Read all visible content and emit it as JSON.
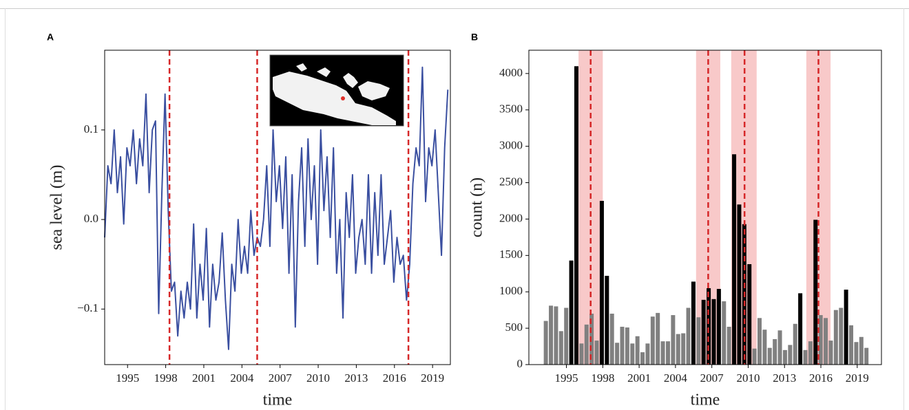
{
  "chart_data": [
    {
      "type": "line",
      "panel": "A",
      "xlabel": "time",
      "ylabel": "sea level (m)",
      "color": "#3a4fa0",
      "x": [
        1993.2,
        1993.45,
        1993.7,
        1993.95,
        1994.2,
        1994.45,
        1994.7,
        1994.95,
        1995.2,
        1995.45,
        1995.7,
        1995.95,
        1996.2,
        1996.45,
        1996.7,
        1996.95,
        1997.2,
        1997.45,
        1997.7,
        1997.95,
        1998.2,
        1998.45,
        1998.7,
        1998.95,
        1999.2,
        1999.45,
        1999.7,
        1999.95,
        2000.2,
        2000.45,
        2000.7,
        2000.95,
        2001.2,
        2001.45,
        2001.7,
        2001.95,
        2002.2,
        2002.45,
        2002.7,
        2002.95,
        2003.2,
        2003.45,
        2003.7,
        2003.95,
        2004.2,
        2004.45,
        2004.7,
        2004.95,
        2005.2,
        2005.45,
        2005.7,
        2005.95,
        2006.2,
        2006.45,
        2006.7,
        2006.95,
        2007.2,
        2007.45,
        2007.7,
        2007.95,
        2008.2,
        2008.45,
        2008.7,
        2008.95,
        2009.2,
        2009.45,
        2009.7,
        2009.95,
        2010.2,
        2010.45,
        2010.7,
        2010.95,
        2011.2,
        2011.45,
        2011.7,
        2011.95,
        2012.2,
        2012.45,
        2012.7,
        2012.95,
        2013.2,
        2013.45,
        2013.7,
        2013.95,
        2014.2,
        2014.45,
        2014.7,
        2014.95,
        2015.2,
        2015.45,
        2015.7,
        2015.95,
        2016.2,
        2016.45,
        2016.7,
        2016.95,
        2017.2,
        2017.45,
        2017.7,
        2017.95,
        2018.2,
        2018.45,
        2018.7,
        2018.95,
        2019.2,
        2019.45,
        2019.7,
        2019.95,
        2020.2
      ],
      "values": [
        -0.02,
        0.06,
        0.04,
        0.1,
        0.03,
        0.07,
        -0.005,
        0.08,
        0.06,
        0.1,
        0.04,
        0.09,
        0.06,
        0.14,
        0.03,
        0.1,
        0.11,
        -0.105,
        0.03,
        0.14,
        0.01,
        -0.08,
        -0.07,
        -0.13,
        -0.08,
        -0.11,
        -0.07,
        -0.1,
        -0.005,
        -0.11,
        -0.05,
        -0.09,
        -0.01,
        -0.12,
        -0.05,
        -0.09,
        -0.07,
        -0.015,
        -0.09,
        -0.145,
        -0.05,
        -0.08,
        0.0,
        -0.06,
        -0.03,
        -0.06,
        0.01,
        -0.04,
        -0.02,
        -0.03,
        0.0,
        0.06,
        -0.03,
        0.1,
        0.02,
        0.06,
        -0.01,
        0.07,
        -0.06,
        0.05,
        -0.12,
        0.02,
        0.08,
        -0.03,
        0.09,
        0.0,
        0.06,
        -0.05,
        0.1,
        0.01,
        0.07,
        -0.02,
        0.08,
        -0.06,
        0.0,
        -0.11,
        0.03,
        -0.02,
        0.05,
        -0.06,
        -0.02,
        0.0,
        -0.05,
        0.05,
        -0.06,
        0.03,
        -0.04,
        0.05,
        -0.05,
        -0.02,
        0.01,
        -0.07,
        -0.02,
        -0.05,
        -0.04,
        -0.09,
        -0.05,
        0.04,
        0.08,
        0.06,
        0.17,
        0.02,
        0.08,
        0.06,
        0.1,
        0.03,
        -0.04,
        0.08,
        0.145
      ],
      "xlim": [
        1993.2,
        2020.4
      ],
      "xticks": [
        1995,
        1998,
        2001,
        2004,
        2007,
        2010,
        2013,
        2016,
        2019
      ],
      "ylim": [
        -0.162,
        0.189
      ],
      "yticks": [
        {
          "value": -0.1,
          "label": "−0.1"
        },
        {
          "value": 0,
          "label": "0.0"
        },
        0.1
      ],
      "vlines": [
        1998.3,
        2005.2,
        2017.1
      ],
      "vline_color": "#d62728"
    },
    {
      "type": "bar",
      "panel": "B",
      "xlabel": "time",
      "ylabel": "count (n)",
      "x": [
        1993.3,
        1993.72,
        1994.14,
        1994.56,
        1994.98,
        1995.4,
        1995.82,
        1996.24,
        1996.66,
        1997.08,
        1997.5,
        1997.92,
        1998.34,
        1998.76,
        1999.18,
        1999.6,
        2000.02,
        2000.44,
        2000.86,
        2001.28,
        2001.7,
        2002.12,
        2002.54,
        2002.96,
        2003.38,
        2003.8,
        2004.22,
        2004.64,
        2005.06,
        2005.48,
        2005.9,
        2006.32,
        2006.74,
        2007.16,
        2007.58,
        2008.0,
        2008.42,
        2008.84,
        2009.26,
        2009.68,
        2010.1,
        2010.52,
        2010.94,
        2011.36,
        2011.78,
        2012.2,
        2012.62,
        2013.04,
        2013.46,
        2013.88,
        2014.3,
        2014.72,
        2015.14,
        2015.56,
        2015.98,
        2016.4,
        2016.82,
        2017.24,
        2017.66,
        2018.08,
        2018.5,
        2018.92,
        2019.34,
        2019.76
      ],
      "values": [
        600,
        810,
        800,
        460,
        780,
        1430,
        4100,
        290,
        550,
        700,
        330,
        2250,
        1220,
        700,
        300,
        520,
        510,
        290,
        390,
        170,
        290,
        660,
        710,
        320,
        320,
        680,
        420,
        430,
        780,
        1140,
        650,
        890,
        1050,
        900,
        1040,
        870,
        520,
        2890,
        2200,
        1930,
        1380,
        220,
        640,
        480,
        230,
        350,
        470,
        200,
        270,
        560,
        980,
        200,
        320,
        1990,
        680,
        640,
        330,
        750,
        780,
        1030,
        540,
        310,
        380,
        230
      ],
      "bar_colors": [
        "#808080",
        "#808080",
        "#808080",
        "#808080",
        "#808080",
        "#000000",
        "#000000",
        "#808080",
        "#808080",
        "#808080",
        "#808080",
        "#000000",
        "#000000",
        "#808080",
        "#808080",
        "#808080",
        "#808080",
        "#808080",
        "#808080",
        "#808080",
        "#808080",
        "#808080",
        "#808080",
        "#808080",
        "#808080",
        "#808080",
        "#808080",
        "#808080",
        "#808080",
        "#000000",
        "#808080",
        "#000000",
        "#000000",
        "#000000",
        "#000000",
        "#808080",
        "#808080",
        "#000000",
        "#000000",
        "#000000",
        "#000000",
        "#808080",
        "#808080",
        "#808080",
        "#808080",
        "#808080",
        "#808080",
        "#808080",
        "#808080",
        "#808080",
        "#000000",
        "#808080",
        "#808080",
        "#000000",
        "#808080",
        "#808080",
        "#808080",
        "#808080",
        "#808080",
        "#000000",
        "#808080",
        "#808080",
        "#808080",
        "#808080"
      ],
      "xlim": [
        1991.9,
        2021.0
      ],
      "xticks": [
        1995,
        1998,
        2001,
        2004,
        2007,
        2010,
        2013,
        2016,
        2019
      ],
      "ylim": [
        0,
        4320
      ],
      "yticks": [
        0,
        500,
        1000,
        1500,
        2000,
        2500,
        3000,
        3500,
        4000
      ],
      "spans": [
        [
          1996.0,
          1998.0
        ],
        [
          2005.7,
          2007.7
        ],
        [
          2008.6,
          2010.7
        ],
        [
          2014.8,
          2016.8
        ]
      ],
      "span_color": "#f8c9c9",
      "vlines": [
        1997.0,
        2006.7,
        2009.7,
        2015.8
      ],
      "vline_color": "#d62728"
    }
  ]
}
